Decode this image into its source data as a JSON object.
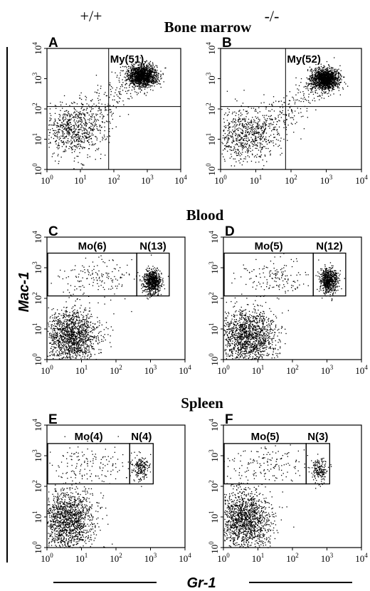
{
  "genotype_headers": [
    "+/+",
    "-/-"
  ],
  "section_titles": [
    "Bone marrow",
    "Blood",
    "Spleen"
  ],
  "axis_titles": {
    "x": "Gr-1",
    "y": "Mac-1"
  },
  "chart_data": [
    {
      "type": "scatter",
      "panel": "A",
      "section": "Bone marrow",
      "genotype": "+/+",
      "xlabel": "Gr-1",
      "ylabel": "Mac-1",
      "xscale": "log",
      "yscale": "log",
      "xlim": [
        1,
        10000
      ],
      "ylim": [
        1,
        10000
      ],
      "xticks": [
        "10^0",
        "10^1",
        "10^2",
        "10^3",
        "10^4"
      ],
      "yticks": [
        "10^0",
        "10^1",
        "10^2",
        "10^3",
        "10^4"
      ],
      "quadrant_lines": {
        "x": 70,
        "y": 120
      },
      "gates": [
        {
          "label": "My(51)",
          "name": "My",
          "percent": 51,
          "position": "upper-right quadrant"
        }
      ],
      "populations": [
        {
          "center": [
            6,
            20
          ],
          "spread": [
            0.5,
            0.42
          ],
          "density": "high"
        },
        {
          "center": [
            700,
            1300
          ],
          "spread": [
            0.22,
            0.18
          ],
          "density": "very high"
        },
        {
          "center": [
            60,
            150
          ],
          "spread": [
            0.5,
            0.4
          ],
          "density": "scattered bridge"
        }
      ]
    },
    {
      "type": "scatter",
      "panel": "B",
      "section": "Bone marrow",
      "genotype": "-/-",
      "xlabel": "Gr-1",
      "ylabel": "Mac-1",
      "xscale": "log",
      "yscale": "log",
      "xlim": [
        1,
        10000
      ],
      "ylim": [
        1,
        10000
      ],
      "xticks": [
        "10^0",
        "10^1",
        "10^2",
        "10^3",
        "10^4"
      ],
      "yticks": [
        "10^0",
        "10^1",
        "10^2",
        "10^3",
        "10^4"
      ],
      "quadrant_lines": {
        "x": 70,
        "y": 120
      },
      "gates": [
        {
          "label": "My(52)",
          "name": "My",
          "percent": 52,
          "position": "upper-right quadrant"
        }
      ],
      "populations": [
        {
          "center": [
            5,
            15
          ],
          "spread": [
            0.5,
            0.45
          ],
          "density": "high"
        },
        {
          "center": [
            900,
            1000
          ],
          "spread": [
            0.2,
            0.17
          ],
          "density": "very high"
        },
        {
          "center": [
            50,
            60
          ],
          "spread": [
            0.5,
            0.4
          ],
          "density": "scattered bridge"
        }
      ]
    },
    {
      "type": "scatter",
      "panel": "C",
      "section": "Blood",
      "genotype": "+/+",
      "xlabel": "Gr-1",
      "ylabel": "Mac-1",
      "xscale": "log",
      "yscale": "log",
      "xlim": [
        1,
        10000
      ],
      "ylim": [
        1,
        10000
      ],
      "xticks": [
        "10^0",
        "10^1",
        "10^2",
        "10^3",
        "10^4"
      ],
      "yticks": [
        "10^0",
        "10^1",
        "10^2",
        "10^3",
        "10^4"
      ],
      "gates": [
        {
          "label": "Mo(6)",
          "name": "Mo",
          "percent": 6,
          "x_range": [
            1,
            400
          ],
          "y_range": [
            120,
            3000
          ]
        },
        {
          "label": "N(13)",
          "name": "N",
          "percent": 13,
          "x_range": [
            400,
            3500
          ],
          "y_range": [
            120,
            3000
          ]
        }
      ],
      "populations": [
        {
          "center": [
            5,
            6
          ],
          "spread": [
            0.4,
            0.45
          ],
          "density": "very high"
        },
        {
          "center": [
            1100,
            350
          ],
          "spread": [
            0.13,
            0.2
          ],
          "density": "high"
        },
        {
          "center": [
            30,
            500
          ],
          "spread": [
            0.55,
            0.3
          ],
          "density": "sparse"
        }
      ]
    },
    {
      "type": "scatter",
      "panel": "D",
      "section": "Blood",
      "genotype": "-/-",
      "xlabel": "Gr-1",
      "ylabel": "Mac-1",
      "xscale": "log",
      "yscale": "log",
      "xlim": [
        1,
        10000
      ],
      "ylim": [
        1,
        10000
      ],
      "xticks": [
        "10^0",
        "10^1",
        "10^2",
        "10^3",
        "10^4"
      ],
      "yticks": [
        "10^0",
        "10^1",
        "10^2",
        "10^3",
        "10^4"
      ],
      "gates": [
        {
          "label": "Mo(5)",
          "name": "Mo",
          "percent": 5,
          "x_range": [
            1,
            400
          ],
          "y_range": [
            120,
            3000
          ]
        },
        {
          "label": "N(12)",
          "name": "N",
          "percent": 12,
          "x_range": [
            400,
            3500
          ],
          "y_range": [
            120,
            3000
          ]
        }
      ],
      "populations": [
        {
          "center": [
            5,
            6
          ],
          "spread": [
            0.4,
            0.45
          ],
          "density": "very high"
        },
        {
          "center": [
            1100,
            400
          ],
          "spread": [
            0.13,
            0.2
          ],
          "density": "high"
        },
        {
          "center": [
            30,
            500
          ],
          "spread": [
            0.55,
            0.3
          ],
          "density": "sparse"
        }
      ]
    },
    {
      "type": "scatter",
      "panel": "E",
      "section": "Spleen",
      "genotype": "+/+",
      "xlabel": "Gr-1",
      "ylabel": "Mac-1",
      "xscale": "log",
      "yscale": "log",
      "xlim": [
        1,
        10000
      ],
      "ylim": [
        1,
        10000
      ],
      "xticks": [
        "10^0",
        "10^1",
        "10^2",
        "10^3",
        "10^4"
      ],
      "yticks": [
        "10^0",
        "10^1",
        "10^2",
        "10^3",
        "10^4"
      ],
      "gates": [
        {
          "label": "Mo(4)",
          "name": "Mo",
          "percent": 4,
          "x_range": [
            1,
            250
          ],
          "y_range": [
            120,
            2500
          ]
        },
        {
          "label": "N(4)",
          "name": "N",
          "percent": 4,
          "x_range": [
            250,
            1200
          ],
          "y_range": [
            120,
            2500
          ]
        }
      ],
      "populations": [
        {
          "center": [
            4,
            8
          ],
          "spread": [
            0.38,
            0.5
          ],
          "density": "very high"
        },
        {
          "center": [
            500,
            400
          ],
          "spread": [
            0.12,
            0.2
          ],
          "density": "moderate"
        },
        {
          "center": [
            20,
            500
          ],
          "spread": [
            0.6,
            0.3
          ],
          "density": "sparse"
        }
      ]
    },
    {
      "type": "scatter",
      "panel": "F",
      "section": "Spleen",
      "genotype": "-/-",
      "xlabel": "Gr-1",
      "ylabel": "Mac-1",
      "xscale": "log",
      "yscale": "log",
      "xlim": [
        1,
        10000
      ],
      "ylim": [
        1,
        10000
      ],
      "xticks": [
        "10^0",
        "10^1",
        "10^2",
        "10^3",
        "10^4"
      ],
      "yticks": [
        "10^0",
        "10^1",
        "10^2",
        "10^3",
        "10^4"
      ],
      "gates": [
        {
          "label": "Mo(5)",
          "name": "Mo",
          "percent": 5,
          "x_range": [
            1,
            250
          ],
          "y_range": [
            120,
            2500
          ]
        },
        {
          "label": "N(3)",
          "name": "N",
          "percent": 3,
          "x_range": [
            250,
            1200
          ],
          "y_range": [
            120,
            2500
          ]
        }
      ],
      "populations": [
        {
          "center": [
            4,
            8
          ],
          "spread": [
            0.38,
            0.5
          ],
          "density": "very high"
        },
        {
          "center": [
            600,
            350
          ],
          "spread": [
            0.12,
            0.2
          ],
          "density": "moderate"
        },
        {
          "center": [
            20,
            500
          ],
          "spread": [
            0.6,
            0.3
          ],
          "density": "sparse"
        }
      ]
    }
  ]
}
